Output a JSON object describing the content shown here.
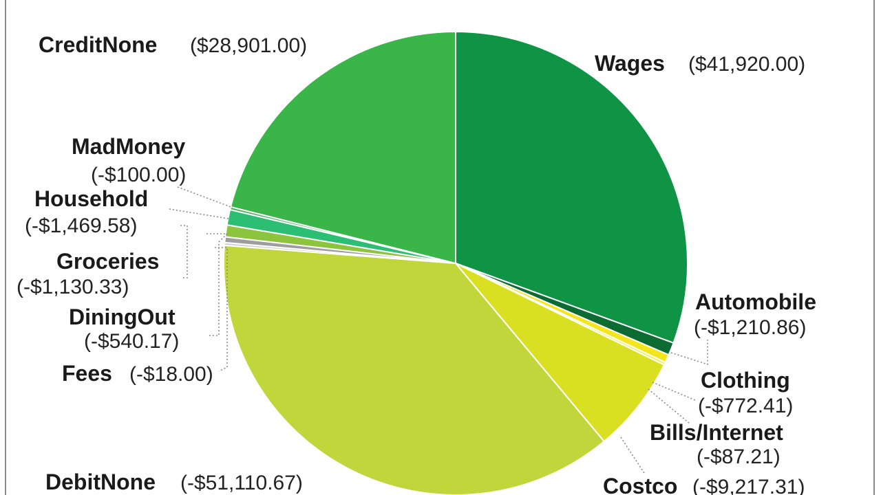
{
  "chart_data": {
    "type": "pie",
    "slices": [
      {
        "label": "Wages",
        "value_text": "($41,920.00)",
        "value": 41920.0,
        "color": "#0e9444"
      },
      {
        "label": "Automobile",
        "value_text": "(-$1,210.86)",
        "value": -1210.86,
        "color": "#0b6b33"
      },
      {
        "label": "Clothing",
        "value_text": "(-$772.41)",
        "value": -772.41,
        "color": "#f3e61c"
      },
      {
        "label": "Bills/Internet",
        "value_text": "(-$87.21)",
        "value": -87.21,
        "color": "#eef24e"
      },
      {
        "label": "Costco",
        "value_text": "(-$9,217.31)",
        "value": -9217.31,
        "color": "#d9e021"
      },
      {
        "label": "DebitNone",
        "value_text": "(-$51,110.67)",
        "value": -51110.67,
        "color": "#c1d63b"
      },
      {
        "label": "Fees",
        "value_text": "(-$18.00)",
        "value": -18.0,
        "color": "#d0d0d0"
      },
      {
        "label": "DiningOut",
        "value_text": "(-$540.17)",
        "value": -540.17,
        "color": "#9e9e9e"
      },
      {
        "label": "Groceries",
        "value_text": "(-$1,130.33)",
        "value": -1130.33,
        "color": "#8cc43e"
      },
      {
        "label": "Household",
        "value_text": "(-$1,469.58)",
        "value": -1469.58,
        "color": "#2cbf73"
      },
      {
        "label": "MadMoney",
        "value_text": "(-$100.00)",
        "value": -100.0,
        "color": "#49b35a"
      },
      {
        "label": "CreditNone",
        "value_text": "($28,901.00)",
        "value": 28901.0,
        "color": "#39b54a"
      }
    ]
  }
}
